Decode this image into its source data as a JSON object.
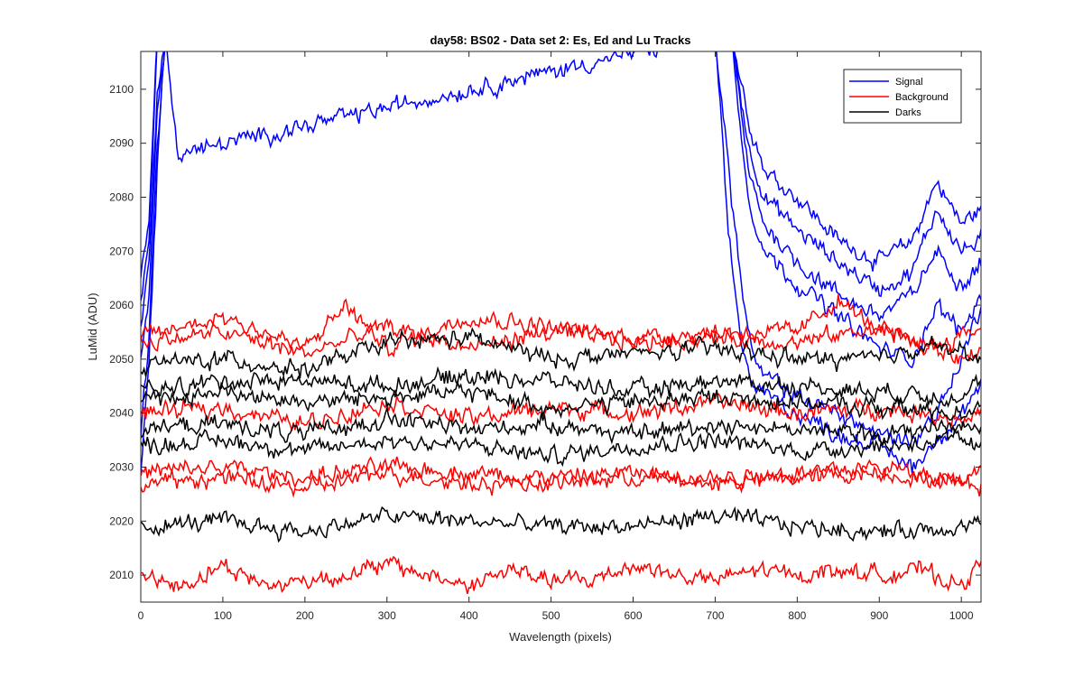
{
  "chart_data": {
    "type": "line",
    "title": "day58: BS02 - Data set 2: Es, Ed and Lu Tracks",
    "xlabel": "Wavelength (pixels)",
    "ylabel": "LuMid (ADU)",
    "xlim": [
      0,
      1024
    ],
    "ylim": [
      2005,
      2107
    ],
    "xticks": [
      0,
      100,
      200,
      300,
      400,
      500,
      600,
      700,
      800,
      900,
      1000
    ],
    "yticks": [
      2010,
      2020,
      2030,
      2040,
      2050,
      2060,
      2070,
      2080,
      2090,
      2100
    ],
    "grid": false,
    "legend_position": "top-right",
    "legend": [
      {
        "name": "Signal",
        "color": "#0000ff"
      },
      {
        "name": "Background",
        "color": "#ff0000"
      },
      {
        "name": "Darks",
        "color": "#000000"
      }
    ],
    "series": [
      {
        "group": "Signal",
        "color": "#0000ff",
        "x": [
          0,
          10,
          20,
          30,
          45,
          700,
          720,
          740,
          760,
          800,
          850,
          900,
          940,
          970,
          1000,
          1024
        ],
        "y": [
          2065,
          2075,
          2110,
          2110,
          2110,
          2110,
          2110,
          2095,
          2085,
          2080,
          2072,
          2068,
          2072,
          2083,
          2075,
          2078
        ]
      },
      {
        "group": "Signal",
        "color": "#0000ff",
        "x": [
          0,
          10,
          20,
          30,
          45,
          700,
          720,
          740,
          760,
          800,
          850,
          900,
          940,
          970,
          1000,
          1024
        ],
        "y": [
          2060,
          2072,
          2110,
          2110,
          2110,
          2110,
          2110,
          2090,
          2080,
          2074,
          2068,
          2063,
          2066,
          2078,
          2070,
          2072
        ]
      },
      {
        "group": "Signal",
        "color": "#0000ff",
        "x": [
          0,
          10,
          20,
          30,
          45,
          700,
          720,
          740,
          760,
          800,
          850,
          900,
          940,
          970,
          1000,
          1024
        ],
        "y": [
          2055,
          2068,
          2100,
          2110,
          2110,
          2110,
          2110,
          2085,
          2075,
          2068,
          2062,
          2058,
          2062,
          2070,
          2064,
          2068
        ]
      },
      {
        "group": "Signal",
        "color": "#0000ff",
        "x": [
          0,
          10,
          20,
          30,
          45,
          700,
          720,
          740,
          760,
          800,
          850,
          900,
          940,
          970,
          1000,
          1024
        ],
        "y": [
          2050,
          2062,
          2095,
          2110,
          2110,
          2110,
          2110,
          2080,
          2070,
          2064,
          2058,
          2052,
          2050,
          2060,
          2055,
          2062
        ]
      },
      {
        "group": "Signal",
        "color": "#0000ff",
        "x": [
          0,
          10,
          20,
          30,
          45,
          700,
          720,
          735,
          750,
          800,
          850,
          900,
          940,
          970,
          1000,
          1024
        ],
        "y": [
          2035,
          2055,
          2090,
          2110,
          2110,
          2110,
          2080,
          2060,
          2048,
          2043,
          2040,
          2036,
          2035,
          2040,
          2050,
          2060
        ]
      },
      {
        "group": "Signal",
        "color": "#0000ff",
        "x": [
          0,
          10,
          20,
          30,
          45,
          700,
          715,
          730,
          745,
          800,
          850,
          900,
          940,
          970,
          1000,
          1024
        ],
        "y": [
          2030,
          2050,
          2085,
          2110,
          2088,
          2110,
          2075,
          2055,
          2045,
          2040,
          2036,
          2034,
          2030,
          2035,
          2040,
          2045
        ]
      },
      {
        "group": "Background",
        "color": "#ff0000",
        "x": [
          0,
          100,
          200,
          250,
          300,
          400,
          500,
          600,
          700,
          800,
          850,
          900,
          960,
          1024
        ],
        "y": [
          2054,
          2058,
          2052,
          2060,
          2052,
          2058,
          2056,
          2054,
          2055,
          2055,
          2061,
          2055,
          2052,
          2056
        ]
      },
      {
        "group": "Background",
        "color": "#ff0000",
        "x": [
          0,
          100,
          200,
          300,
          400,
          500,
          600,
          700,
          800,
          900,
          1000,
          1024
        ],
        "y": [
          2053,
          2055,
          2051,
          2056,
          2052,
          2055,
          2053,
          2054,
          2053,
          2056,
          2050,
          2052
        ]
      },
      {
        "group": "Background",
        "color": "#ff0000",
        "x": [
          0,
          100,
          200,
          300,
          400,
          500,
          600,
          700,
          800,
          900,
          1000,
          1024
        ],
        "y": [
          2040,
          2041,
          2038,
          2042,
          2039,
          2041,
          2040,
          2042,
          2040,
          2041,
          2039,
          2040
        ]
      },
      {
        "group": "Background",
        "color": "#ff0000",
        "x": [
          0,
          100,
          200,
          300,
          400,
          500,
          600,
          700,
          800,
          900,
          1000,
          1024
        ],
        "y": [
          2029,
          2030,
          2028,
          2030,
          2029,
          2028,
          2029,
          2028,
          2029,
          2030,
          2028,
          2029
        ]
      },
      {
        "group": "Background",
        "color": "#ff0000",
        "x": [
          0,
          100,
          200,
          300,
          400,
          500,
          600,
          700,
          800,
          900,
          1000,
          1024
        ],
        "y": [
          2027,
          2028,
          2026,
          2029,
          2027,
          2027,
          2028,
          2027,
          2028,
          2029,
          2027,
          2027
        ]
      },
      {
        "group": "Background",
        "color": "#ff0000",
        "x": [
          0,
          50,
          100,
          150,
          200,
          250,
          300,
          350,
          400,
          450,
          500,
          550,
          600,
          650,
          700,
          750,
          800,
          850,
          900,
          950,
          1000,
          1024
        ],
        "y": [
          2010,
          2008,
          2012,
          2008,
          2009,
          2010,
          2012,
          2010,
          2008,
          2011,
          2009,
          2009,
          2012,
          2010,
          2009,
          2011,
          2010,
          2011,
          2010,
          2011,
          2008,
          2012
        ]
      },
      {
        "group": "Darks",
        "color": "#000000",
        "x": [
          0,
          100,
          200,
          300,
          400,
          500,
          600,
          700,
          800,
          900,
          960,
          1024
        ],
        "y": [
          2049,
          2050,
          2048,
          2053,
          2054,
          2050,
          2051,
          2052,
          2050,
          2050,
          2053,
          2050
        ]
      },
      {
        "group": "Darks",
        "color": "#000000",
        "x": [
          0,
          100,
          200,
          300,
          400,
          500,
          600,
          700,
          800,
          900,
          1000,
          1024
        ],
        "y": [
          2044,
          2046,
          2046,
          2045,
          2047,
          2046,
          2044,
          2046,
          2045,
          2044,
          2043,
          2046
        ]
      },
      {
        "group": "Darks",
        "color": "#000000",
        "x": [
          0,
          100,
          200,
          300,
          400,
          500,
          600,
          700,
          800,
          900,
          1000,
          1024
        ],
        "y": [
          2042,
          2044,
          2042,
          2043,
          2044,
          2041,
          2042,
          2043,
          2042,
          2041,
          2040,
          2042
        ]
      },
      {
        "group": "Darks",
        "color": "#000000",
        "x": [
          0,
          100,
          200,
          300,
          400,
          500,
          600,
          700,
          800,
          900,
          1000,
          1024
        ],
        "y": [
          2037,
          2038,
          2036,
          2039,
          2037,
          2038,
          2036,
          2038,
          2037,
          2036,
          2038,
          2037
        ]
      },
      {
        "group": "Darks",
        "color": "#000000",
        "x": [
          0,
          100,
          200,
          300,
          400,
          500,
          600,
          700,
          800,
          900,
          1000,
          1024
        ],
        "y": [
          2034,
          2035,
          2033,
          2035,
          2034,
          2032,
          2034,
          2035,
          2033,
          2034,
          2035,
          2033
        ]
      },
      {
        "group": "Darks",
        "color": "#000000",
        "x": [
          0,
          100,
          200,
          300,
          400,
          500,
          600,
          700,
          800,
          900,
          1000,
          1024
        ],
        "y": [
          2019,
          2020,
          2018,
          2021,
          2020,
          2019,
          2019,
          2021,
          2019,
          2018,
          2019,
          2020
        ]
      }
    ]
  }
}
